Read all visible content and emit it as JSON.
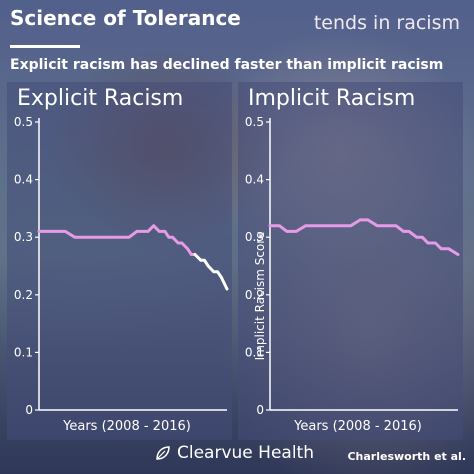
{
  "header": {
    "title": "Science of Tolerance",
    "right_text": "tends in racism",
    "subtitle": "Explicit racism has declined faster than implicit racism"
  },
  "footer": {
    "brand": "Clearvue Health",
    "credit": "Charlesworth et al."
  },
  "colors": {
    "explicit_line": "#ffffff",
    "pink_line": "#e79ae6",
    "axis": "#ffffff"
  },
  "chart_data": [
    {
      "type": "line",
      "title": "Explicit Racism",
      "xlabel": "Years (2008 - 2016)",
      "ylabel": "",
      "ylim": [
        0,
        0.5
      ],
      "yticks": [
        "0",
        "0.1",
        "0.2",
        "0.3",
        "0.4",
        "0.5"
      ],
      "xlim": [
        0,
        1
      ],
      "series": [
        {
          "color_segments": [
            {
              "color": "pink",
              "x": [
                0,
                0.05,
                0.1,
                0.14,
                0.19,
                0.24,
                0.29,
                0.33,
                0.38,
                0.43,
                0.48,
                0.52,
                0.55,
                0.58,
                0.61,
                0.64,
                0.67,
                0.69,
                0.71,
                0.74,
                0.76,
                0.79,
                0.81,
                0.83
              ],
              "y": [
                0.31,
                0.31,
                0.31,
                0.31,
                0.3,
                0.3,
                0.3,
                0.3,
                0.3,
                0.3,
                0.3,
                0.31,
                0.31,
                0.31,
                0.32,
                0.31,
                0.31,
                0.3,
                0.3,
                0.29,
                0.29,
                0.28,
                0.27,
                0.27
              ]
            },
            {
              "color": "white",
              "x": [
                0.83,
                0.86,
                0.88,
                0.9,
                0.93,
                0.95,
                0.97,
                1.0
              ],
              "y": [
                0.27,
                0.26,
                0.26,
                0.25,
                0.24,
                0.24,
                0.23,
                0.21
              ]
            }
          ]
        }
      ]
    },
    {
      "type": "line",
      "title": "Implicit Racism",
      "xlabel": "Years (2008 - 2016)",
      "ylabel": "Implicit Racism Score",
      "ylim": [
        0,
        0.5
      ],
      "yticks": [
        "0",
        "0.1",
        "0.2",
        "0.3",
        "0.4",
        "0.5"
      ],
      "xlim": [
        0,
        1
      ],
      "series": [
        {
          "color_segments": [
            {
              "color": "pink",
              "x": [
                0,
                0.05,
                0.09,
                0.14,
                0.19,
                0.24,
                0.29,
                0.33,
                0.38,
                0.43,
                0.48,
                0.52,
                0.57,
                0.62,
                0.67,
                0.71,
                0.74,
                0.78,
                0.81,
                0.84,
                0.88,
                0.91,
                0.95,
                1.0
              ],
              "y": [
                0.32,
                0.32,
                0.31,
                0.31,
                0.32,
                0.32,
                0.32,
                0.32,
                0.32,
                0.32,
                0.33,
                0.33,
                0.32,
                0.32,
                0.32,
                0.31,
                0.31,
                0.3,
                0.3,
                0.29,
                0.29,
                0.28,
                0.28,
                0.27
              ]
            }
          ]
        }
      ]
    }
  ]
}
